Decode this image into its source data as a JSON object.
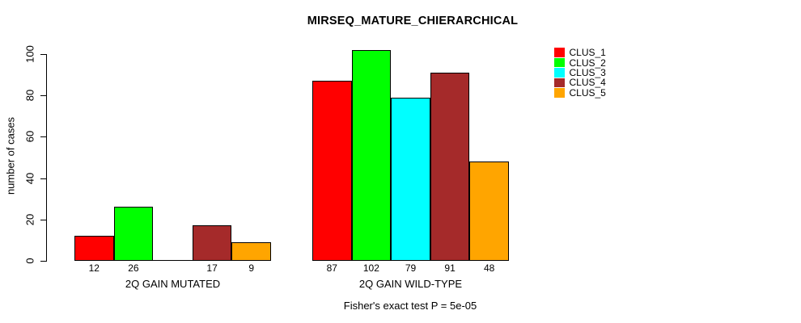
{
  "chart_data": {
    "type": "bar",
    "title": "MIRSEQ_MATURE_CHIERARCHICAL",
    "ylabel": "number of cases",
    "xlabel": "",
    "ylim": [
      0,
      105
    ],
    "yticks": [
      0,
      20,
      40,
      60,
      80,
      100
    ],
    "grid": false,
    "legend_position": "right",
    "legend": [
      "CLUS_1",
      "CLUS_2",
      "CLUS_3",
      "CLUS_4",
      "CLUS_5"
    ],
    "colors": [
      "#FF0000",
      "#00FF00",
      "#00FFFF",
      "#A52A2A",
      "#FFA500"
    ],
    "categories": [
      "2Q GAIN MUTATED",
      "2Q GAIN WILD-TYPE"
    ],
    "series_note": "series are clusters CLUS_1..CLUS_5; values listed per category group",
    "groups": [
      {
        "label": "2Q GAIN MUTATED",
        "values": [
          12,
          26,
          0,
          17,
          9
        ],
        "bar_labels": [
          "12",
          "26",
          "",
          "17",
          "9"
        ]
      },
      {
        "label": "2Q GAIN WILD-TYPE",
        "values": [
          87,
          102,
          79,
          91,
          48
        ],
        "bar_labels": [
          "87",
          "102",
          "79",
          "91",
          "48"
        ]
      }
    ],
    "footnote": "Fisher's exact test P = 5e-05"
  }
}
